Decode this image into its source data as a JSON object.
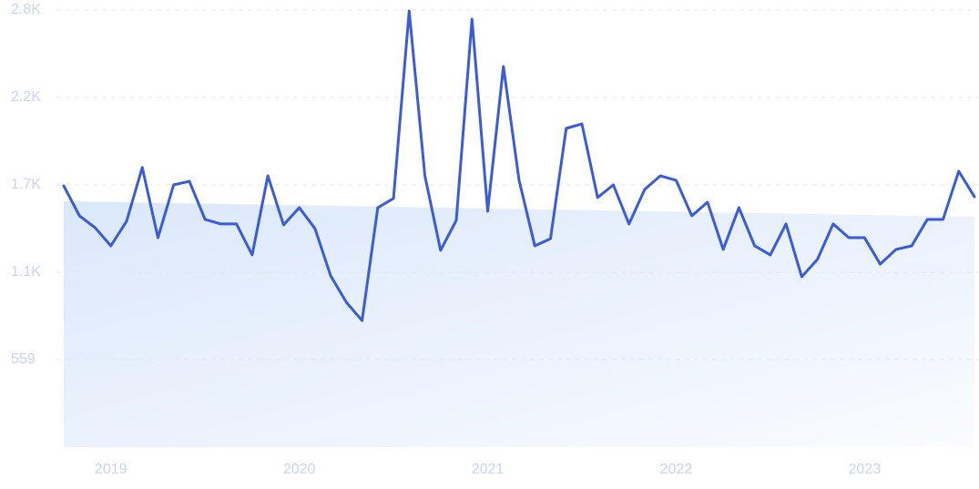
{
  "chart_data": {
    "type": "line",
    "categories": [
      null,
      null,
      null,
      "2019",
      null,
      null,
      null,
      null,
      null,
      null,
      null,
      null,
      null,
      null,
      null,
      "2020",
      null,
      null,
      null,
      null,
      null,
      null,
      null,
      null,
      null,
      null,
      null,
      "2021",
      null,
      null,
      null,
      null,
      null,
      null,
      null,
      null,
      null,
      null,
      null,
      "2022",
      null,
      null,
      null,
      null,
      null,
      null,
      null,
      null,
      null,
      null,
      null,
      "2023",
      null,
      null,
      null,
      null,
      null,
      null,
      null
    ],
    "series": [
      {
        "color": "#3a5cd8",
        "values": [
          1671,
          1479,
          1403,
          1287,
          1444,
          1788,
          1339,
          1677,
          1700,
          1456,
          1427,
          1427,
          1229,
          1735,
          1421,
          1531,
          1398,
          1095,
          926,
          809,
          1531,
          1590,
          2789,
          1735,
          1258,
          1450,
          2737,
          1508,
          2434,
          1706,
          1287,
          1333,
          2038,
          2067,
          1596,
          1677,
          1427,
          1648,
          1735,
          1706,
          1479,
          1566,
          1264,
          1531,
          1287,
          1229,
          1427,
          1089,
          1200,
          1427,
          1339,
          1339,
          1170,
          1264,
          1287,
          1456,
          1456,
          1764,
          1601
        ]
      }
    ],
    "trend": [
      1572,
      1473
    ],
    "trend_color": "#dbe8fb",
    "ylim": [
      0,
      2795
    ],
    "yticks": [
      559,
      {
        "value": 1118,
        "label": "1.1K"
      },
      {
        "value": 1677,
        "label": "1.7K"
      },
      {
        "value": 2236,
        "label": "2.2K"
      },
      {
        "value": 2795,
        "label": "2.8K"
      }
    ],
    "grid": true
  }
}
